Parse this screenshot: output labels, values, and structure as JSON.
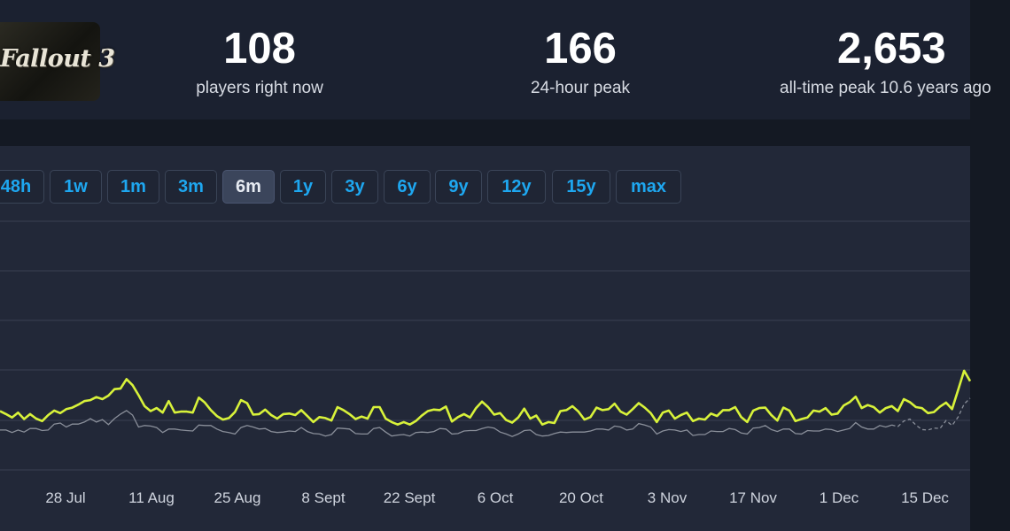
{
  "stats": {
    "players_now": {
      "value": "108",
      "label": "players right now"
    },
    "peak_24h": {
      "value": "166",
      "label": "24-hour peak"
    },
    "all_time": {
      "value": "2,653",
      "label": "all-time peak 10.6 years ago"
    },
    "logo_text": "Fallout 3"
  },
  "range_buttons": [
    {
      "label": "48h",
      "active": false
    },
    {
      "label": "1w",
      "active": false
    },
    {
      "label": "1m",
      "active": false
    },
    {
      "label": "3m",
      "active": false
    },
    {
      "label": "6m",
      "active": true
    },
    {
      "label": "1y",
      "active": false
    },
    {
      "label": "3y",
      "active": false
    },
    {
      "label": "6y",
      "active": false
    },
    {
      "label": "9y",
      "active": false
    },
    {
      "label": "12y",
      "active": false
    },
    {
      "label": "15y",
      "active": false
    },
    {
      "label": "max",
      "active": false
    }
  ],
  "colors": {
    "players_line": "#d8f23a",
    "average_line": "#8a8f9a",
    "grid": "#3a4152",
    "accent": "#1ea7f0"
  },
  "chart_data": {
    "type": "line",
    "x_tick_labels": [
      "28 Jul",
      "11 Aug",
      "25 Aug",
      "8 Sept",
      "22 Sept",
      "6 Oct",
      "20 Oct",
      "3 Nov",
      "17 Nov",
      "1 Dec",
      "15 Dec"
    ],
    "grid": true,
    "series": [
      {
        "values": [
          118,
          112,
          105,
          115,
          102,
          112,
          103,
          98,
          110,
          119,
          114,
          122,
          125,
          131,
          138,
          140,
          146,
          142,
          149,
          162,
          163,
          182,
          170,
          150,
          128,
          118,
          124,
          115,
          138,
          115,
          117,
          117,
          115,
          145,
          135,
          120,
          108,
          101,
          104,
          116,
          140,
          134,
          111,
          112,
          121,
          110,
          103,
          112,
          113,
          110,
          120,
          108,
          96,
          106,
          104,
          99,
          126,
          120,
          112,
          102,
          107,
          103,
          126,
          126,
          103,
          96,
          91,
          96,
          91,
          98,
          109,
          118,
          121,
          120,
          127,
          97,
          106,
          112,
          105,
          124,
          137,
          126,
          111,
          114,
          100,
          95,
          105,
          123,
          103,
          109,
          91,
          96,
          94,
          118,
          120,
          128,
          117,
          101,
          106,
          125,
          120,
          122,
          133,
          117,
          111,
          122,
          134,
          125,
          114,
          96,
          115,
          119,
          103,
          110,
          115,
          98,
          103,
          101,
          113,
          108,
          120,
          120,
          126,
          106,
          96,
          119,
          124,
          125,
          110,
          99,
          125,
          119,
          98,
          102,
          105,
          119,
          117,
          124,
          111,
          113,
          129,
          136,
          147,
          124,
          130,
          126,
          115,
          124,
          128,
          118,
          142,
          136,
          126,
          124,
          114,
          116,
          127,
          135,
          122,
          160,
          199,
          178
        ]
      },
      {
        "values": [
          80,
          80,
          75,
          80,
          76,
          83,
          83,
          79,
          80,
          92,
          94,
          86,
          92,
          92,
          96,
          103,
          96,
          101,
          91,
          103,
          112,
          119,
          110,
          86,
          89,
          88,
          85,
          75,
          82,
          82,
          80,
          79,
          78,
          90,
          89,
          89,
          82,
          77,
          75,
          72,
          85,
          89,
          86,
          82,
          83,
          77,
          75,
          76,
          78,
          77,
          85,
          77,
          73,
          72,
          68,
          71,
          84,
          83,
          82,
          73,
          72,
          72,
          83,
          85,
          76,
          68,
          70,
          71,
          68,
          75,
          76,
          75,
          77,
          83,
          82,
          72,
          73,
          78,
          79,
          79,
          83,
          86,
          84,
          76,
          72,
          67,
          72,
          79,
          80,
          71,
          68,
          69,
          73,
          76,
          75,
          76,
          76,
          76,
          78,
          82,
          82,
          80,
          88,
          86,
          80,
          82,
          93,
          90,
          86,
          72,
          78,
          81,
          80,
          77,
          80,
          69,
          71,
          71,
          78,
          77,
          77,
          83,
          81,
          74,
          72,
          84,
          85,
          89,
          81,
          77,
          82,
          82,
          73,
          72,
          79,
          78,
          78,
          82,
          81,
          77,
          80,
          83,
          95,
          86,
          82,
          82,
          89,
          86,
          90,
          87,
          98,
          102,
          90,
          81,
          80,
          84,
          83,
          99,
          89,
          106,
          132,
          144
        ]
      }
    ]
  }
}
